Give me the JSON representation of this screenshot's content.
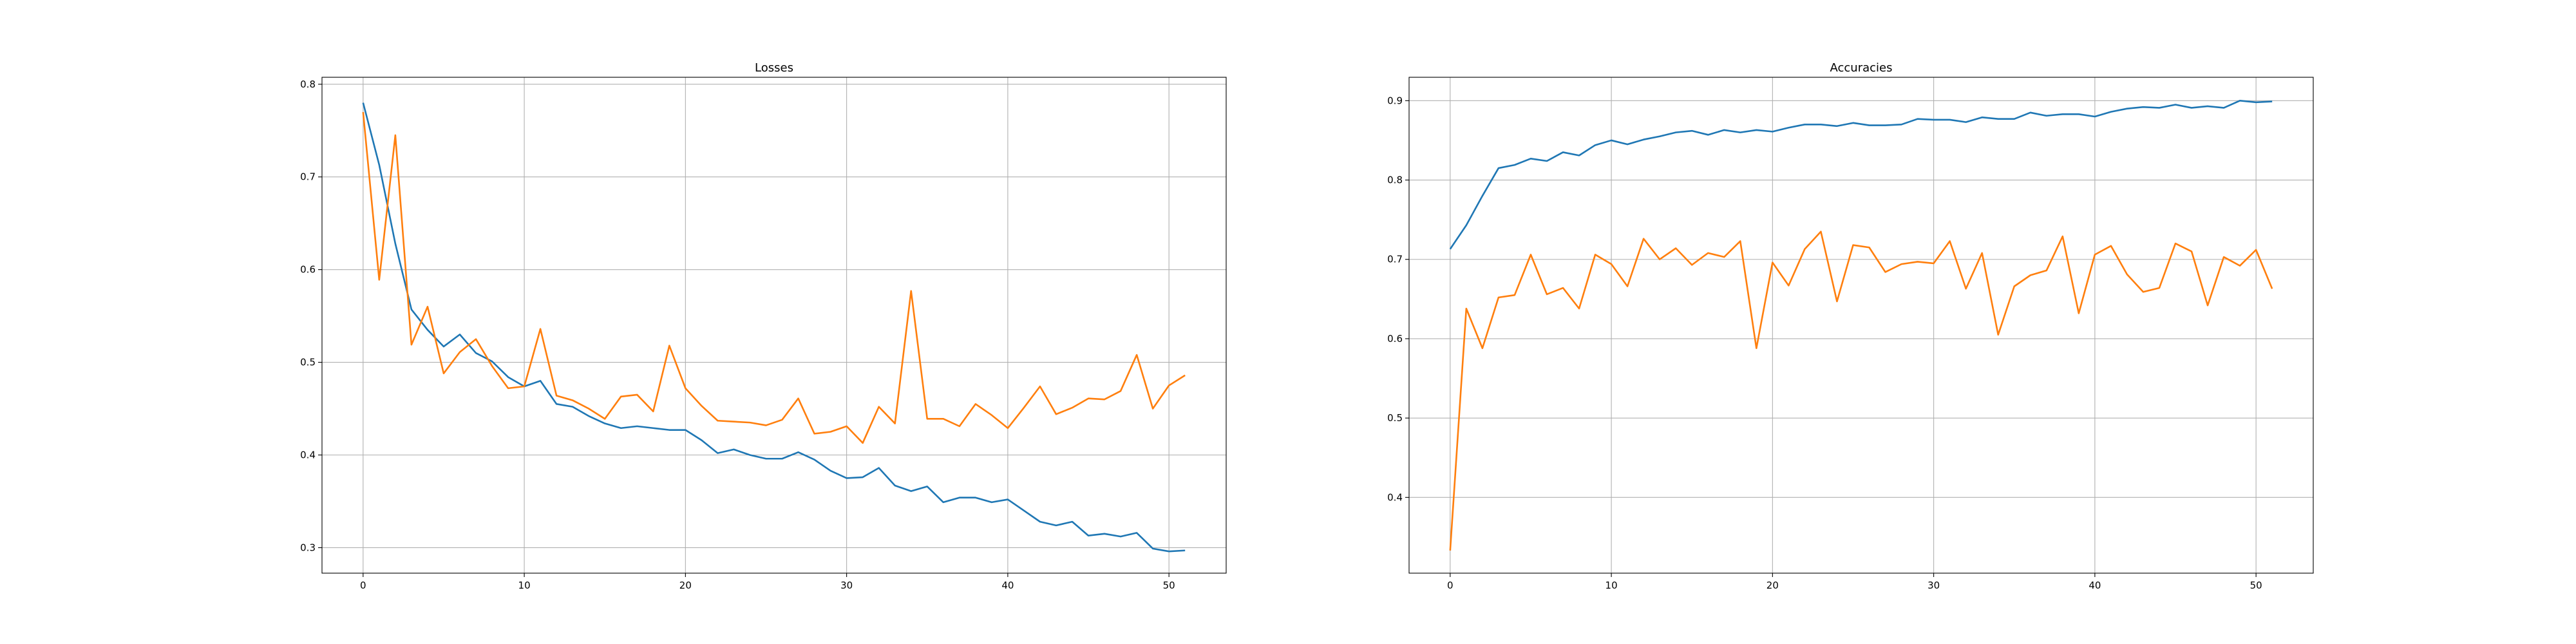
{
  "chart_data": [
    {
      "type": "line",
      "title": "Losses",
      "xlabel": "",
      "ylabel": "",
      "xlim": [
        -2.55,
        53.55
      ],
      "ylim": [
        0.2725,
        0.8075
      ],
      "xticks": [
        0,
        10,
        20,
        30,
        40,
        50
      ],
      "yticks": [
        0.3,
        0.4,
        0.5,
        0.6,
        0.7,
        0.8
      ],
      "ytick_labels": [
        "0.3",
        "0.4",
        "0.5",
        "0.6",
        "0.7",
        "0.8"
      ],
      "grid": true,
      "x": [
        0,
        1,
        2,
        3,
        4,
        5,
        6,
        7,
        8,
        9,
        10,
        11,
        12,
        13,
        14,
        15,
        16,
        17,
        18,
        19,
        20,
        21,
        22,
        23,
        24,
        25,
        26,
        27,
        28,
        29,
        30,
        31,
        32,
        33,
        34,
        35,
        36,
        37,
        38,
        39,
        40,
        41,
        42,
        43,
        44,
        45,
        46,
        47,
        48,
        49,
        50,
        51
      ],
      "series": [
        {
          "color": "#1f77b4",
          "values": [
            0.78,
            0.713,
            0.628,
            0.557,
            0.535,
            0.517,
            0.53,
            0.51,
            0.501,
            0.484,
            0.474,
            0.48,
            0.455,
            0.452,
            0.442,
            0.434,
            0.429,
            0.431,
            0.429,
            0.427,
            0.427,
            0.416,
            0.402,
            0.406,
            0.4,
            0.396,
            0.396,
            0.403,
            0.395,
            0.383,
            0.375,
            0.376,
            0.386,
            0.367,
            0.361,
            0.366,
            0.349,
            0.354,
            0.354,
            0.349,
            0.352,
            0.34,
            0.328,
            0.324,
            0.328,
            0.313,
            0.315,
            0.312,
            0.316,
            0.299,
            0.296,
            0.297
          ]
        },
        {
          "color": "#ff7f0e",
          "values": [
            0.77,
            0.589,
            0.745,
            0.519,
            0.56,
            0.488,
            0.511,
            0.525,
            0.496,
            0.472,
            0.474,
            0.536,
            0.464,
            0.459,
            0.45,
            0.439,
            0.463,
            0.465,
            0.447,
            0.518,
            0.472,
            0.453,
            0.437,
            0.436,
            0.435,
            0.432,
            0.438,
            0.461,
            0.423,
            0.425,
            0.431,
            0.413,
            0.452,
            0.434,
            0.577,
            0.439,
            0.439,
            0.431,
            0.455,
            0.443,
            0.429,
            0.451,
            0.474,
            0.444,
            0.451,
            0.461,
            0.46,
            0.469,
            0.508,
            0.45,
            0.475,
            0.486
          ]
        }
      ]
    },
    {
      "type": "line",
      "title": "Accuracies",
      "xlabel": "",
      "ylabel": "",
      "xlim": [
        -2.55,
        53.55
      ],
      "ylim": [
        0.3045,
        0.9295
      ],
      "xticks": [
        0,
        10,
        20,
        30,
        40,
        50
      ],
      "yticks": [
        0.4,
        0.5,
        0.6,
        0.7,
        0.8,
        0.9
      ],
      "ytick_labels": [
        "0.4",
        "0.5",
        "0.6",
        "0.7",
        "0.8",
        "0.9"
      ],
      "grid": true,
      "x": [
        0,
        1,
        2,
        3,
        4,
        5,
        6,
        7,
        8,
        9,
        10,
        11,
        12,
        13,
        14,
        15,
        16,
        17,
        18,
        19,
        20,
        21,
        22,
        23,
        24,
        25,
        26,
        27,
        28,
        29,
        30,
        31,
        32,
        33,
        34,
        35,
        36,
        37,
        38,
        39,
        40,
        41,
        42,
        43,
        44,
        45,
        46,
        47,
        48,
        49,
        50,
        51
      ],
      "series": [
        {
          "color": "#1f77b4",
          "values": [
            0.713,
            0.743,
            0.78,
            0.815,
            0.819,
            0.827,
            0.824,
            0.835,
            0.831,
            0.844,
            0.85,
            0.845,
            0.851,
            0.855,
            0.86,
            0.862,
            0.857,
            0.863,
            0.86,
            0.863,
            0.861,
            0.866,
            0.87,
            0.87,
            0.868,
            0.872,
            0.869,
            0.869,
            0.87,
            0.877,
            0.876,
            0.876,
            0.873,
            0.879,
            0.877,
            0.877,
            0.885,
            0.881,
            0.883,
            0.883,
            0.88,
            0.886,
            0.89,
            0.892,
            0.891,
            0.895,
            0.891,
            0.893,
            0.891,
            0.9,
            0.898,
            0.899
          ]
        },
        {
          "color": "#ff7f0e",
          "values": [
            0.333,
            0.638,
            0.588,
            0.652,
            0.655,
            0.706,
            0.656,
            0.664,
            0.638,
            0.706,
            0.694,
            0.666,
            0.726,
            0.7,
            0.714,
            0.693,
            0.708,
            0.703,
            0.723,
            0.588,
            0.696,
            0.667,
            0.713,
            0.735,
            0.647,
            0.718,
            0.715,
            0.684,
            0.694,
            0.697,
            0.695,
            0.723,
            0.663,
            0.708,
            0.605,
            0.666,
            0.68,
            0.686,
            0.729,
            0.632,
            0.706,
            0.717,
            0.681,
            0.659,
            0.664,
            0.72,
            0.71,
            0.642,
            0.703,
            0.692,
            0.712,
            0.663
          ]
        }
      ]
    }
  ]
}
